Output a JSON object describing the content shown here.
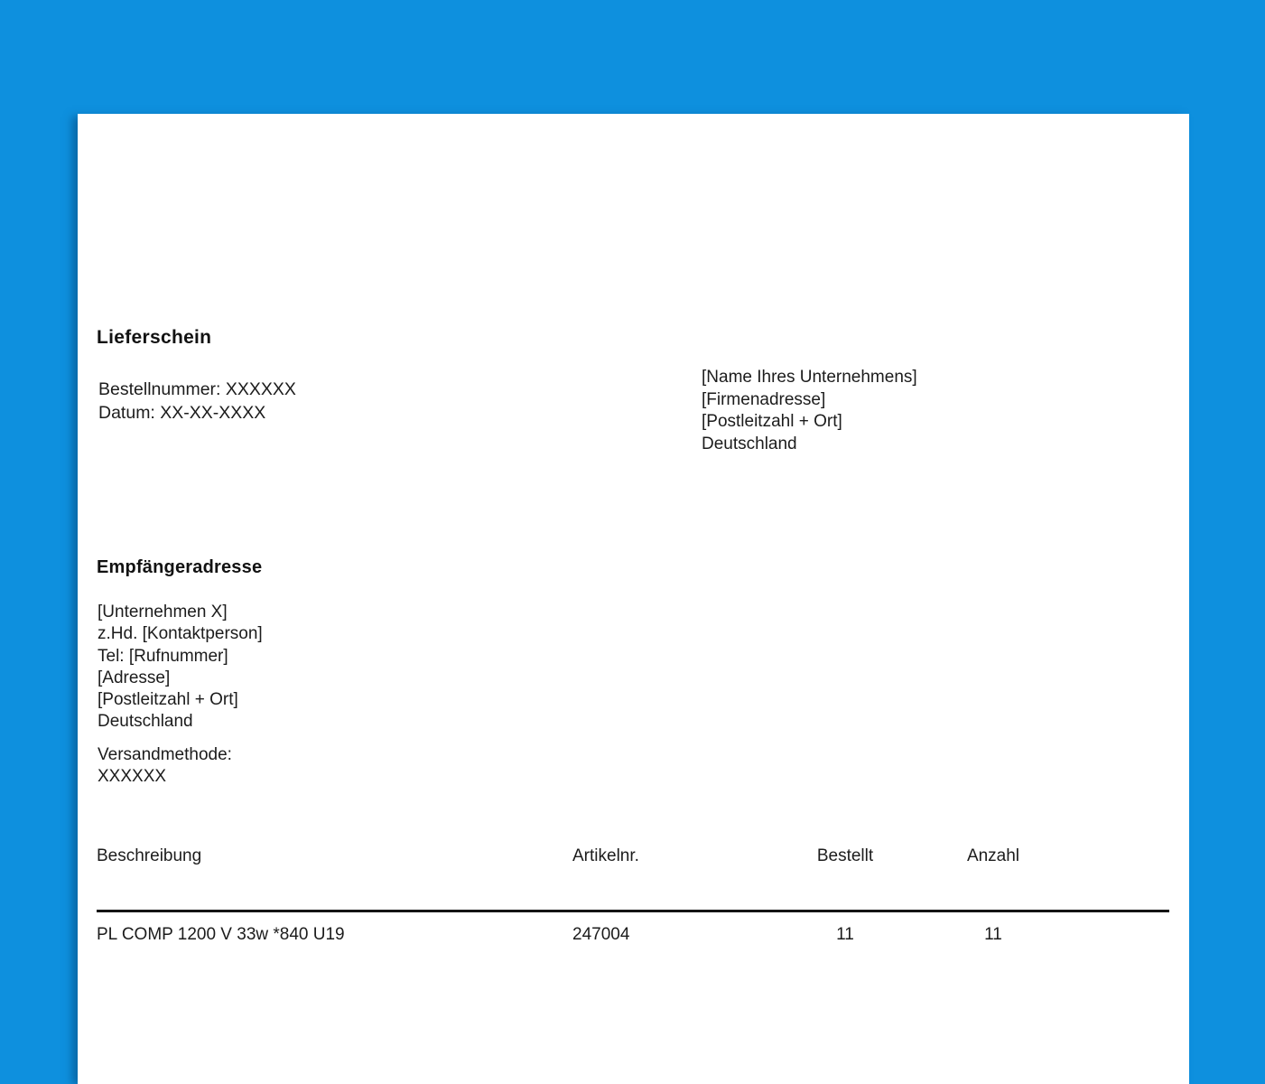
{
  "colors": {
    "background": "#0e90de",
    "paper": "#ffffff",
    "text": "#1c1c1c",
    "rule": "#141414"
  },
  "document": {
    "title": "Lieferschein",
    "meta": {
      "order_number": "Bestellnummer: XXXXXX",
      "date": "Datum: XX-XX-XXXX"
    },
    "sender": {
      "lines": [
        "[Name Ihres Unternehmens]",
        "[Firmenadresse]",
        "[Postleitzahl + Ort]",
        "Deutschland"
      ]
    },
    "recipient": {
      "heading": "Empfängeradresse",
      "lines": [
        "[Unternehmen X]",
        "z.Hd. [Kontaktperson]",
        "Tel: [Rufnummer]",
        "[Adresse]",
        "[Postleitzahl + Ort]",
        "Deutschland"
      ]
    },
    "shipping": {
      "label": "Versandmethode:",
      "value": "XXXXXX"
    },
    "table": {
      "headers": [
        "Beschreibung",
        "Artikelnr.",
        "Bestellt",
        "Anzahl"
      ],
      "rows": [
        {
          "description": "PL COMP 1200 V 33w *840 U19",
          "article_no": "247004",
          "ordered": "11",
          "quantity": "11"
        }
      ]
    }
  }
}
